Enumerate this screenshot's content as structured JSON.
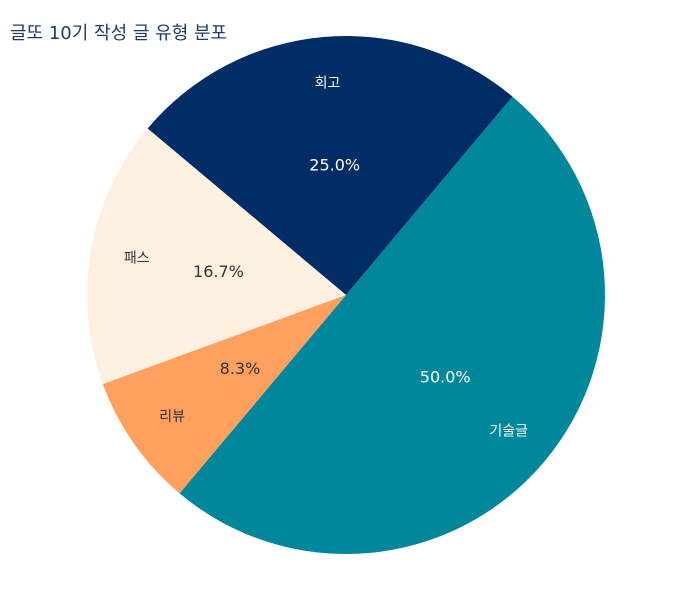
{
  "chart_data": {
    "type": "pie",
    "title": "글또 10기 작성 글 유형 분포",
    "categories": [
      "기술글",
      "회고",
      "패스",
      "리뷰"
    ],
    "values": [
      50.0,
      25.0,
      16.7,
      8.3
    ],
    "value_labels": [
      "50.0%",
      "25.0%",
      "16.7%",
      "8.3%"
    ],
    "colors": [
      "#00879c",
      "#002d66",
      "#fff0e1",
      "#ffa05f"
    ]
  }
}
